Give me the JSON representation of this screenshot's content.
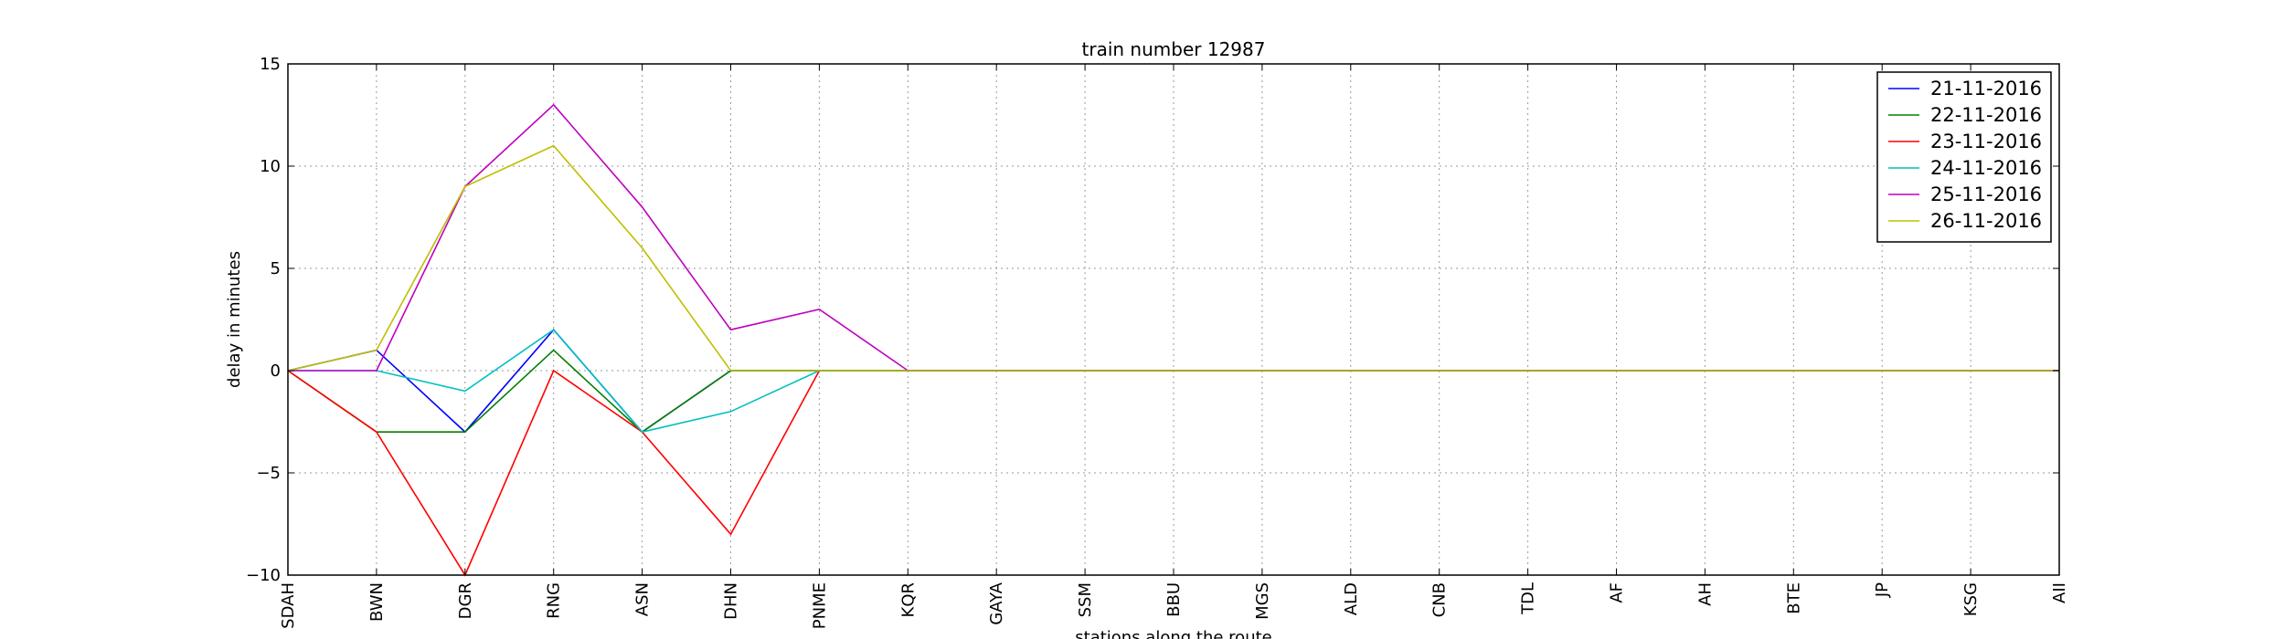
{
  "chart_data": {
    "type": "line",
    "title": "train number 12987",
    "xlabel": "stations along the route",
    "ylabel": "delay in minutes",
    "ylim": [
      -10,
      15
    ],
    "yticks": [
      -10,
      -5,
      0,
      5,
      10,
      15
    ],
    "grid": true,
    "legend_position": "top-right",
    "categories": [
      "SDAH",
      "BWN",
      "DGR",
      "RNG",
      "ASN",
      "DHN",
      "PNME",
      "KQR",
      "GAYA",
      "SSM",
      "BBU",
      "MGS",
      "ALD",
      "CNB",
      "TDL",
      "AF",
      "AH",
      "BTE",
      "JP",
      "KSG",
      "AII"
    ],
    "series": [
      {
        "name": "21-11-2016",
        "color": "#0000ff",
        "values": [
          0,
          1,
          -3,
          2,
          -3,
          0,
          0,
          0,
          0,
          0,
          0,
          0,
          0,
          0,
          0,
          0,
          0,
          0,
          0,
          0,
          0
        ]
      },
      {
        "name": "22-11-2016",
        "color": "#008000",
        "values": [
          0,
          -3,
          -3,
          1,
          -3,
          0,
          0,
          0,
          0,
          0,
          0,
          0,
          0,
          0,
          0,
          0,
          0,
          0,
          0,
          0,
          0
        ]
      },
      {
        "name": "23-11-2016",
        "color": "#ff0000",
        "values": [
          0,
          -3,
          -10,
          0,
          -3,
          -8,
          0,
          0,
          0,
          0,
          0,
          0,
          0,
          0,
          0,
          0,
          0,
          0,
          0,
          0,
          0
        ]
      },
      {
        "name": "24-11-2016",
        "color": "#00bfbf",
        "values": [
          0,
          0,
          -1,
          2,
          -3,
          -2,
          0,
          0,
          0,
          0,
          0,
          0,
          0,
          0,
          0,
          0,
          0,
          0,
          0,
          0,
          0
        ]
      },
      {
        "name": "25-11-2016",
        "color": "#bf00bf",
        "values": [
          0,
          0,
          9,
          13,
          8,
          2,
          3,
          0,
          0,
          0,
          0,
          0,
          0,
          0,
          0,
          0,
          0,
          0,
          0,
          0,
          0
        ]
      },
      {
        "name": "26-11-2016",
        "color": "#bfbf00",
        "values": [
          0,
          1,
          9,
          11,
          6,
          0,
          0,
          0,
          0,
          0,
          0,
          0,
          0,
          0,
          0,
          0,
          0,
          0,
          0,
          0,
          0
        ]
      }
    ]
  }
}
